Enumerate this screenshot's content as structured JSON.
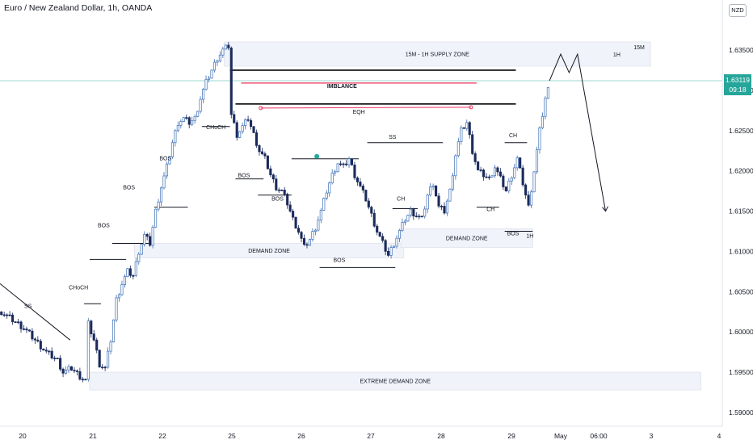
{
  "header": {
    "title": "Euro / New Zealand Dollar, 1h, OANDA",
    "currency": "NZD"
  },
  "price_badge": {
    "price": "1.63119",
    "countdown": "09:18"
  },
  "colors": {
    "bull": "#3d6fb5",
    "bear": "#1b2a5b",
    "zone": "#f0f3fa",
    "price_line": "#26a69a",
    "imbalance": "#e8325c"
  },
  "chart_data": {
    "type": "candlestick",
    "title": "Euro / New Zealand Dollar, 1h, OANDA",
    "ylim": [
      1.5875,
      1.639
    ],
    "yticks": [
      "1.63500",
      "1.63000",
      "1.62500",
      "1.62000",
      "1.61500",
      "1.61000",
      "1.60500",
      "1.60000",
      "1.59500",
      "1.59000"
    ],
    "xticks": [
      "20",
      "21",
      "22",
      "25",
      "26",
      "27",
      "28",
      "29",
      "May",
      "06:00",
      "3",
      "4"
    ],
    "last_price": 1.63119,
    "close_path": [
      [
        0,
        1.6025
      ],
      [
        4,
        1.6015
      ],
      [
        8,
        1.6005
      ],
      [
        12,
        1.599
      ],
      [
        16,
        1.5975
      ],
      [
        20,
        1.5965
      ],
      [
        22,
        1.595
      ],
      [
        25,
        1.5955
      ],
      [
        28,
        1.5945
      ],
      [
        30,
        1.594
      ],
      [
        31,
        1.601
      ],
      [
        33,
        1.599
      ],
      [
        35,
        1.596
      ],
      [
        37,
        1.5955
      ],
      [
        39,
        1.599
      ],
      [
        41,
        1.604
      ],
      [
        43,
        1.606
      ],
      [
        45,
        1.6075
      ],
      [
        47,
        1.607
      ],
      [
        49,
        1.61
      ],
      [
        51,
        1.612
      ],
      [
        53,
        1.611
      ],
      [
        55,
        1.615
      ],
      [
        57,
        1.618
      ],
      [
        59,
        1.6205
      ],
      [
        61,
        1.6235
      ],
      [
        63,
        1.626
      ],
      [
        65,
        1.6265
      ],
      [
        67,
        1.626
      ],
      [
        69,
        1.6265
      ],
      [
        71,
        1.629
      ],
      [
        73,
        1.631
      ],
      [
        75,
        1.6325
      ],
      [
        77,
        1.634
      ],
      [
        79,
        1.635
      ],
      [
        81,
        1.6355
      ],
      [
        82,
        1.627
      ],
      [
        84,
        1.6245
      ],
      [
        86,
        1.6255
      ],
      [
        88,
        1.6265
      ],
      [
        90,
        1.6245
      ],
      [
        92,
        1.6225
      ],
      [
        94,
        1.6215
      ],
      [
        96,
        1.6195
      ],
      [
        98,
        1.618
      ],
      [
        100,
        1.6175
      ],
      [
        102,
        1.616
      ],
      [
        104,
        1.614
      ],
      [
        106,
        1.6125
      ],
      [
        108,
        1.6105
      ],
      [
        110,
        1.6115
      ],
      [
        112,
        1.613
      ],
      [
        114,
        1.615
      ],
      [
        116,
        1.6175
      ],
      [
        118,
        1.6195
      ],
      [
        120,
        1.621
      ],
      [
        122,
        1.6205
      ],
      [
        124,
        1.6215
      ],
      [
        126,
        1.6195
      ],
      [
        128,
        1.618
      ],
      [
        130,
        1.6165
      ],
      [
        132,
        1.6145
      ],
      [
        134,
        1.6125
      ],
      [
        136,
        1.611
      ],
      [
        138,
        1.6095
      ],
      [
        140,
        1.611
      ],
      [
        142,
        1.6125
      ],
      [
        144,
        1.614
      ],
      [
        146,
        1.615
      ],
      [
        148,
        1.6145
      ],
      [
        150,
        1.614
      ],
      [
        152,
        1.617
      ],
      [
        154,
        1.6185
      ],
      [
        156,
        1.6155
      ],
      [
        158,
        1.615
      ],
      [
        160,
        1.6175
      ],
      [
        162,
        1.622
      ],
      [
        164,
        1.625
      ],
      [
        166,
        1.626
      ],
      [
        168,
        1.6225
      ],
      [
        170,
        1.62
      ],
      [
        172,
        1.6195
      ],
      [
        174,
        1.619
      ],
      [
        176,
        1.6205
      ],
      [
        178,
        1.619
      ],
      [
        180,
        1.6175
      ],
      [
        182,
        1.6195
      ],
      [
        184,
        1.6215
      ],
      [
        186,
        1.6185
      ],
      [
        188,
        1.6155
      ],
      [
        190,
        1.62
      ],
      [
        192,
        1.625
      ],
      [
        194,
        1.629
      ],
      [
        196,
        1.6312
      ]
    ],
    "projection": [
      [
        196,
        1.6312
      ],
      [
        200,
        1.6345
      ],
      [
        203,
        1.6322
      ],
      [
        206,
        1.6345
      ],
      [
        216,
        1.615
      ]
    ],
    "zones": [
      {
        "label": "15M - 1H SUPPLY ZONE",
        "y_top": 1.636,
        "y_bottom": 1.633,
        "x0": 80,
        "x1": 232,
        "tag": "15M"
      },
      {
        "label": "DEMAND ZONE",
        "y_top": 1.611,
        "y_bottom": 1.6092,
        "x0": 48,
        "x1": 144
      },
      {
        "label": "DEMAND ZONE",
        "y_top": 1.6128,
        "y_bottom": 1.6105,
        "x0": 143,
        "x1": 190
      },
      {
        "label": "EXTREME DEMAND ZONE",
        "y_top": 1.595,
        "y_bottom": 1.5928,
        "x0": 32,
        "x1": 250
      }
    ],
    "annotations": [
      {
        "text": "IMBLANCE",
        "x": 122,
        "y": 1.6303
      },
      {
        "text": "EQH",
        "x": 128,
        "y": 1.6271
      },
      {
        "text": "SS",
        "x": 140,
        "y": 1.624
      },
      {
        "text": "BOS",
        "x": 59,
        "y": 1.6213
      },
      {
        "text": "BOS",
        "x": 46,
        "y": 1.6177
      },
      {
        "text": "BOS",
        "x": 37,
        "y": 1.613
      },
      {
        "text": "CHoCH",
        "x": 28,
        "y": 1.6053
      },
      {
        "text": "CHoCH",
        "x": 77,
        "y": 1.6252
      },
      {
        "text": "BOS",
        "x": 87,
        "y": 1.6192
      },
      {
        "text": "BOS",
        "x": 99,
        "y": 1.6163
      },
      {
        "text": "BOS",
        "x": 121,
        "y": 1.6087
      },
      {
        "text": "CH",
        "x": 143,
        "y": 1.6163
      },
      {
        "text": "CH",
        "x": 183,
        "y": 1.6242
      },
      {
        "text": "CH",
        "x": 175,
        "y": 1.615
      },
      {
        "text": "BOS",
        "x": 183,
        "y": 1.612
      },
      {
        "text": "SS",
        "x": 10,
        "y": 1.603
      },
      {
        "text": "1H",
        "x": 189,
        "y": 1.6117
      },
      {
        "text": "1H",
        "x": 220,
        "y": 1.6342
      }
    ]
  }
}
